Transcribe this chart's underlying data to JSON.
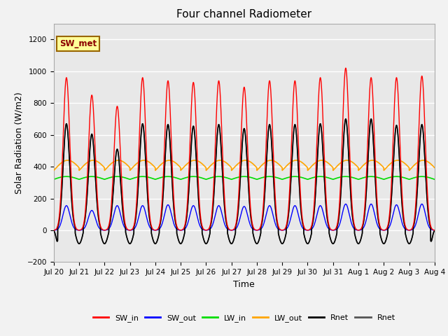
{
  "title": "Four channel Radiometer",
  "xlabel": "Time",
  "ylabel": "Solar Radiation (W/m2)",
  "ylim": [
    -200,
    1300
  ],
  "yticks": [
    -200,
    0,
    200,
    400,
    600,
    800,
    1000,
    1200
  ],
  "annotation_text": "SW_met",
  "background_color": "#f2f2f2",
  "plot_bg_color": "#e8e8e8",
  "n_days": 15,
  "SW_in_peaks": [
    960,
    850,
    780,
    960,
    940,
    930,
    940,
    900,
    940,
    940,
    960,
    1020,
    960,
    960,
    970
  ],
  "SW_out_peaks": [
    155,
    125,
    155,
    155,
    160,
    155,
    155,
    150,
    155,
    155,
    155,
    165,
    165,
    160,
    165
  ],
  "LW_in_base": 320,
  "LW_in_amp": 18,
  "LW_out_base": 385,
  "LW_out_amp": 55,
  "Rnet_day_peaks": [
    670,
    605,
    510,
    670,
    665,
    655,
    665,
    640,
    665,
    665,
    670,
    700,
    700,
    660,
    665
  ],
  "Rnet_night_min": -85,
  "colors": {
    "SW_in": "#ff0000",
    "SW_out": "#0000ff",
    "LW_in": "#00dd00",
    "LW_out": "#ffa500",
    "Rnet_black": "#000000",
    "Rnet_gray": "#555555"
  },
  "xtick_labels": [
    "Jul 20",
    "Jul 21",
    "Jul 22",
    "Jul 23",
    "Jul 24",
    "Jul 25",
    "Jul 26",
    "Jul 27",
    "Jul 28",
    "Jul 29",
    "Jul 30",
    "Jul 31",
    "Aug 1",
    "Aug 2",
    "Aug 3",
    "Aug 4"
  ],
  "legend_labels": [
    "SW_in",
    "SW_out",
    "LW_in",
    "LW_out",
    "Rnet",
    "Rnet"
  ],
  "legend_colors": [
    "#ff0000",
    "#0000ff",
    "#00dd00",
    "#ffa500",
    "#000000",
    "#555555"
  ]
}
